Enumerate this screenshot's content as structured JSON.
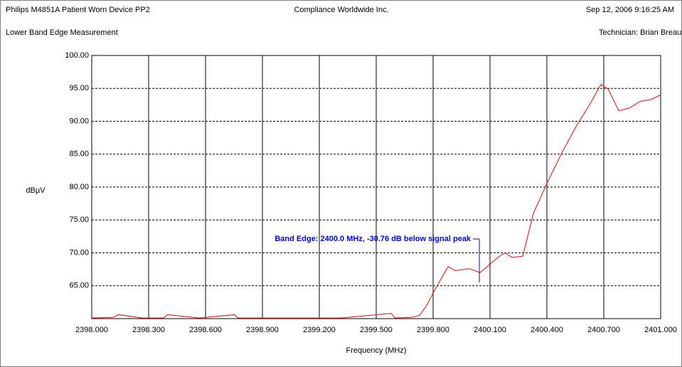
{
  "chart_data": {
    "type": "line",
    "header": {
      "device": "Philips M4851A Patient Worn Device PP2",
      "company": "Compliance Worldwide Inc.",
      "timestamp": "Sep 12, 2006  9:16:25 AM",
      "title": "Lower Band Edge Measurement",
      "technician": "Technician: Brian Breault"
    },
    "xlabel": "Frequency (MHz)",
    "ylabel": "dBµV",
    "color": "#ff0000",
    "x": [
      2398.0,
      2398.116,
      2398.139,
      2398.266,
      2398.379,
      2398.4,
      2398.566,
      2398.754,
      2398.77,
      2399.016,
      2399.316,
      2399.579,
      2399.6,
      2399.691,
      2399.729,
      2399.766,
      2399.804,
      2399.841,
      2399.879,
      2399.916,
      2399.991,
      2400.048,
      2400.085,
      2400.141,
      2400.179,
      2400.216,
      2400.273,
      2400.329,
      2400.404,
      2400.479,
      2400.554,
      2400.629,
      2400.685,
      2400.723,
      2400.779,
      2400.835,
      2400.891,
      2400.948,
      2401.0
    ],
    "values": [
      60.1,
      60.2,
      60.6,
      60.1,
      60.1,
      60.6,
      60.1,
      60.6,
      60.1,
      60.1,
      60.1,
      60.8,
      60.1,
      60.2,
      60.5,
      62.0,
      64.1,
      66.0,
      67.9,
      67.3,
      67.6,
      67.0,
      67.9,
      69.3,
      70.0,
      69.3,
      69.5,
      76.0,
      80.8,
      85.2,
      89.2,
      92.7,
      95.6,
      94.9,
      91.6,
      92.0,
      93.0,
      93.3,
      94.0
    ],
    "xlim": [
      2398.0,
      2401.0
    ],
    "xticks": [
      {
        "value": 2398.0,
        "label": "2398.000"
      },
      {
        "value": 2398.3,
        "label": "2398.300"
      },
      {
        "value": 2398.6,
        "label": "2398.600"
      },
      {
        "value": 2398.9,
        "label": "2398.900"
      },
      {
        "value": 2399.2,
        "label": "2399.200"
      },
      {
        "value": 2399.5,
        "label": "2399.500"
      },
      {
        "value": 2399.8,
        "label": "2399.800"
      },
      {
        "value": 2400.1,
        "label": "2400.100"
      },
      {
        "value": 2400.4,
        "label": "2400.400"
      },
      {
        "value": 2400.7,
        "label": "2400.700"
      },
      {
        "value": 2401.0,
        "label": "2401.000"
      }
    ],
    "ylim": [
      60,
      100
    ],
    "yticks": [
      {
        "value": 65,
        "label": "65.00"
      },
      {
        "value": 70,
        "label": "70.00"
      },
      {
        "value": 75,
        "label": "75.00"
      },
      {
        "value": 80,
        "label": "80.00"
      },
      {
        "value": 85,
        "label": "85.00"
      },
      {
        "value": 90,
        "label": "90.00"
      },
      {
        "value": 95,
        "label": "95.00"
      },
      {
        "value": 100,
        "label": "100.00"
      }
    ],
    "grid": true,
    "annotation": {
      "text": "Band Edge: 2400.0 MHz, -30.76 dB below signal peak",
      "x": 2400.044,
      "y": 65.5,
      "color": "#0000ff"
    }
  }
}
